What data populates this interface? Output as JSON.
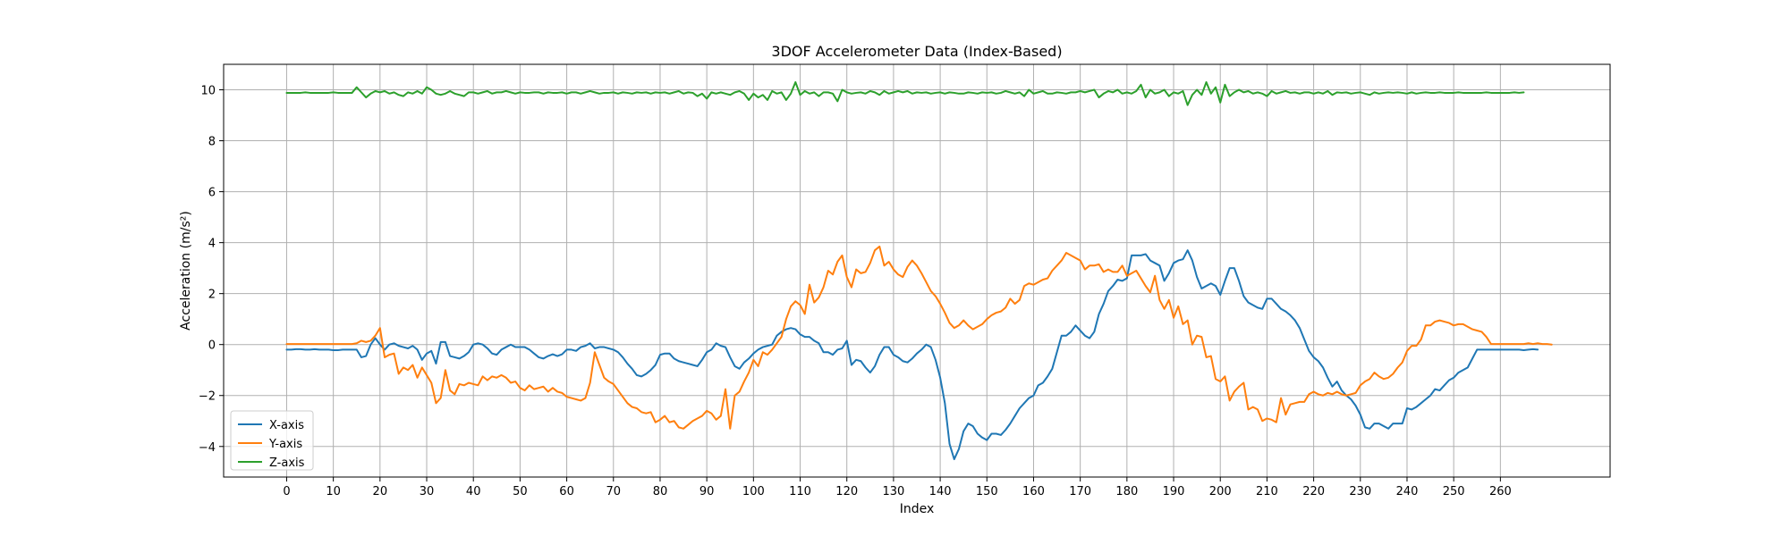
{
  "chart_data": {
    "type": "line",
    "title": "3DOF Accelerometer Data (Index-Based)",
    "xlabel": "Index",
    "ylabel": "Acceleration (m/s²)",
    "xlim": [
      -13.5,
      283.5
    ],
    "ylim": [
      -5.2,
      11.0
    ],
    "xticks": [
      0,
      10,
      20,
      30,
      40,
      50,
      60,
      70,
      80,
      90,
      100,
      110,
      120,
      130,
      140,
      150,
      160,
      170,
      180,
      190,
      200,
      210,
      220,
      230,
      240,
      250,
      260
    ],
    "yticks": [
      -4,
      -2,
      0,
      2,
      4,
      6,
      8,
      10
    ],
    "grid": true,
    "legend_position": "lower-left",
    "x_step": 1,
    "series": [
      {
        "name": "X-axis",
        "color": "#1f77b4",
        "x_start": 0,
        "values": [
          -0.2,
          -0.2,
          -0.18,
          -0.18,
          -0.2,
          -0.2,
          -0.18,
          -0.2,
          -0.2,
          -0.2,
          -0.22,
          -0.22,
          -0.2,
          -0.2,
          -0.2,
          -0.2,
          -0.5,
          -0.45,
          0.0,
          0.25,
          0.0,
          -0.2,
          0.0,
          0.05,
          -0.05,
          -0.1,
          -0.15,
          -0.05,
          -0.2,
          -0.6,
          -0.35,
          -0.25,
          -0.75,
          0.1,
          0.1,
          -0.45,
          -0.5,
          -0.55,
          -0.45,
          -0.3,
          0.0,
          0.05,
          0.0,
          -0.15,
          -0.35,
          -0.4,
          -0.2,
          -0.1,
          0.0,
          -0.1,
          -0.1,
          -0.1,
          -0.2,
          -0.35,
          -0.5,
          -0.55,
          -0.45,
          -0.38,
          -0.45,
          -0.38,
          -0.2,
          -0.2,
          -0.25,
          -0.1,
          -0.05,
          0.05,
          -0.15,
          -0.1,
          -0.1,
          -0.15,
          -0.2,
          -0.3,
          -0.5,
          -0.75,
          -0.95,
          -1.2,
          -1.25,
          -1.15,
          -1.0,
          -0.8,
          -0.4,
          -0.35,
          -0.35,
          -0.55,
          -0.65,
          -0.7,
          -0.75,
          -0.8,
          -0.85,
          -0.6,
          -0.3,
          -0.2,
          0.05,
          -0.05,
          -0.1,
          -0.5,
          -0.85,
          -0.95,
          -0.7,
          -0.55,
          -0.35,
          -0.2,
          -0.1,
          -0.05,
          0.0,
          0.35,
          0.5,
          0.6,
          0.65,
          0.6,
          0.4,
          0.3,
          0.3,
          0.15,
          0.05,
          -0.3,
          -0.3,
          -0.4,
          -0.2,
          -0.15,
          0.15,
          -0.8,
          -0.6,
          -0.65,
          -0.9,
          -1.1,
          -0.85,
          -0.4,
          -0.1,
          -0.1,
          -0.4,
          -0.5,
          -0.65,
          -0.7,
          -0.55,
          -0.35,
          -0.2,
          0.0,
          -0.1,
          -0.6,
          -1.3,
          -2.3,
          -3.9,
          -4.5,
          -4.1,
          -3.4,
          -3.1,
          -3.2,
          -3.5,
          -3.65,
          -3.75,
          -3.5,
          -3.5,
          -3.55,
          -3.35,
          -3.1,
          -2.8,
          -2.5,
          -2.3,
          -2.1,
          -2.0,
          -1.6,
          -1.5,
          -1.25,
          -0.95,
          -0.3,
          0.35,
          0.35,
          0.5,
          0.75,
          0.55,
          0.35,
          0.25,
          0.5,
          1.2,
          1.6,
          2.1,
          2.3,
          2.55,
          2.5,
          2.6,
          3.5,
          3.5,
          3.5,
          3.55,
          3.3,
          3.2,
          3.1,
          2.5,
          2.8,
          3.2,
          3.3,
          3.35,
          3.7,
          3.3,
          2.65,
          2.2,
          2.3,
          2.4,
          2.3,
          1.95,
          2.5,
          3.0,
          3.0,
          2.5,
          1.9,
          1.65,
          1.55,
          1.45,
          1.4,
          1.8,
          1.8,
          1.6,
          1.4,
          1.3,
          1.15,
          0.95,
          0.65,
          0.2,
          -0.25,
          -0.5,
          -0.65,
          -0.9,
          -1.3,
          -1.65,
          -1.45,
          -1.8,
          -2.0,
          -2.15,
          -2.4,
          -2.75,
          -3.25,
          -3.3,
          -3.1,
          -3.1,
          -3.2,
          -3.3,
          -3.1,
          -3.1,
          -3.1,
          -2.5,
          -2.55,
          -2.45,
          -2.3,
          -2.15,
          -2.0,
          -1.75,
          -1.8,
          -1.6,
          -1.4,
          -1.3,
          -1.1,
          -1.0,
          -0.9,
          -0.55,
          -0.2,
          -0.2,
          -0.2,
          -0.2,
          -0.2,
          -0.2,
          -0.2,
          -0.2,
          -0.2,
          -0.2,
          -0.22,
          -0.2,
          -0.18,
          -0.2
        ]
      },
      {
        "name": "Y-axis",
        "color": "#ff7f0e",
        "x_start": 0,
        "values": [
          0.02,
          0.02,
          0.02,
          0.02,
          0.02,
          0.02,
          0.02,
          0.02,
          0.02,
          0.02,
          0.02,
          0.02,
          0.02,
          0.02,
          0.02,
          0.05,
          0.15,
          0.1,
          0.15,
          0.35,
          0.65,
          -0.5,
          -0.4,
          -0.35,
          -1.15,
          -0.9,
          -1.0,
          -0.8,
          -1.3,
          -0.9,
          -1.2,
          -1.5,
          -2.3,
          -2.1,
          -1.0,
          -1.8,
          -1.95,
          -1.55,
          -1.6,
          -1.5,
          -1.55,
          -1.6,
          -1.25,
          -1.4,
          -1.25,
          -1.3,
          -1.2,
          -1.3,
          -1.5,
          -1.45,
          -1.7,
          -1.8,
          -1.6,
          -1.75,
          -1.7,
          -1.65,
          -1.85,
          -1.7,
          -1.85,
          -1.9,
          -2.05,
          -2.1,
          -2.15,
          -2.2,
          -2.1,
          -1.5,
          -0.3,
          -0.8,
          -1.3,
          -1.45,
          -1.55,
          -1.8,
          -2.05,
          -2.3,
          -2.45,
          -2.5,
          -2.65,
          -2.7,
          -2.65,
          -3.05,
          -2.95,
          -2.8,
          -3.05,
          -3.0,
          -3.25,
          -3.3,
          -3.15,
          -3.0,
          -2.9,
          -2.8,
          -2.6,
          -2.7,
          -2.95,
          -2.8,
          -1.75,
          -3.3,
          -2.0,
          -1.85,
          -1.45,
          -1.1,
          -0.6,
          -0.85,
          -0.3,
          -0.4,
          -0.2,
          0.05,
          0.3,
          1.0,
          1.5,
          1.7,
          1.55,
          1.2,
          2.35,
          1.65,
          1.85,
          2.25,
          2.9,
          2.75,
          3.25,
          3.5,
          2.65,
          2.25,
          2.95,
          2.8,
          2.85,
          3.2,
          3.7,
          3.85,
          3.1,
          3.25,
          2.95,
          2.75,
          2.65,
          3.05,
          3.3,
          3.1,
          2.8,
          2.45,
          2.1,
          1.9,
          1.6,
          1.25,
          0.85,
          0.65,
          0.75,
          0.95,
          0.75,
          0.6,
          0.7,
          0.8,
          1.0,
          1.15,
          1.25,
          1.3,
          1.45,
          1.8,
          1.6,
          1.75,
          2.3,
          2.4,
          2.35,
          2.45,
          2.55,
          2.6,
          2.9,
          3.1,
          3.3,
          3.6,
          3.5,
          3.4,
          3.3,
          2.95,
          3.1,
          3.1,
          3.15,
          2.85,
          2.95,
          2.85,
          2.85,
          3.1,
          2.7,
          2.8,
          2.9,
          2.6,
          2.3,
          2.05,
          2.7,
          1.75,
          1.4,
          1.75,
          1.05,
          1.5,
          0.8,
          0.95,
          0.0,
          0.35,
          0.3,
          -0.5,
          -0.45,
          -1.35,
          -1.45,
          -1.25,
          -2.2,
          -1.85,
          -1.65,
          -1.5,
          -2.55,
          -2.45,
          -2.55,
          -3.0,
          -2.9,
          -2.95,
          -3.05,
          -2.1,
          -2.75,
          -2.35,
          -2.3,
          -2.25,
          -2.25,
          -1.95,
          -1.85,
          -1.95,
          -2.0,
          -1.9,
          -1.95,
          -1.85,
          -1.95,
          -2.0,
          -1.95,
          -1.9,
          -1.6,
          -1.45,
          -1.35,
          -1.1,
          -1.25,
          -1.35,
          -1.3,
          -1.15,
          -0.9,
          -0.7,
          -0.25,
          -0.05,
          -0.05,
          0.2,
          0.75,
          0.75,
          0.9,
          0.95,
          0.9,
          0.85,
          0.75,
          0.8,
          0.8,
          0.7,
          0.6,
          0.55,
          0.5,
          0.3,
          0.02,
          0.02,
          0.02,
          0.02,
          0.02,
          0.02,
          0.02,
          0.02,
          0.05,
          0.02,
          0.05,
          0.02,
          0.02,
          0.0
        ]
      },
      {
        "name": "Z-axis",
        "color": "#2ca02c",
        "x_start": 0,
        "values": [
          9.88,
          9.88,
          9.88,
          9.88,
          9.9,
          9.88,
          9.88,
          9.88,
          9.88,
          9.88,
          9.9,
          9.88,
          9.88,
          9.88,
          9.88,
          10.1,
          9.9,
          9.7,
          9.85,
          9.95,
          9.9,
          9.95,
          9.85,
          9.9,
          9.8,
          9.75,
          9.9,
          9.85,
          9.95,
          9.85,
          10.1,
          10.0,
          9.85,
          9.8,
          9.85,
          9.95,
          9.85,
          9.8,
          9.75,
          9.9,
          9.9,
          9.85,
          9.9,
          9.95,
          9.85,
          9.9,
          9.9,
          9.95,
          9.9,
          9.85,
          9.9,
          9.88,
          9.88,
          9.9,
          9.9,
          9.85,
          9.9,
          9.88,
          9.88,
          9.9,
          9.85,
          9.9,
          9.9,
          9.85,
          9.9,
          9.95,
          9.9,
          9.85,
          9.88,
          9.88,
          9.9,
          9.85,
          9.9,
          9.88,
          9.85,
          9.9,
          9.88,
          9.9,
          9.85,
          9.9,
          9.88,
          9.9,
          9.85,
          9.9,
          9.95,
          9.85,
          9.9,
          9.88,
          9.75,
          9.85,
          9.65,
          9.9,
          9.85,
          9.9,
          9.85,
          9.8,
          9.9,
          9.95,
          9.85,
          9.6,
          9.85,
          9.7,
          9.8,
          9.6,
          9.95,
          9.85,
          9.9,
          9.6,
          9.85,
          10.3,
          9.8,
          9.95,
          9.85,
          9.9,
          9.75,
          9.9,
          9.9,
          9.85,
          9.55,
          10.0,
          9.9,
          9.85,
          9.88,
          9.9,
          9.85,
          9.95,
          9.9,
          9.8,
          9.95,
          9.85,
          9.9,
          9.95,
          9.9,
          9.95,
          9.85,
          9.9,
          9.88,
          9.9,
          9.85,
          9.88,
          9.9,
          9.85,
          9.9,
          9.88,
          9.85,
          9.85,
          9.9,
          9.88,
          9.85,
          9.9,
          9.88,
          9.9,
          9.85,
          9.88,
          9.95,
          9.9,
          9.85,
          9.9,
          9.75,
          10.0,
          9.85,
          9.9,
          9.95,
          9.85,
          9.85,
          9.9,
          9.88,
          9.85,
          9.9,
          9.9,
          9.95,
          9.9,
          9.95,
          10.0,
          9.7,
          9.85,
          9.95,
          9.9,
          10.0,
          9.85,
          9.9,
          9.85,
          9.95,
          10.2,
          9.7,
          10.0,
          9.85,
          9.9,
          10.0,
          9.75,
          9.9,
          9.85,
          9.95,
          9.4,
          9.8,
          10.0,
          9.8,
          10.3,
          9.85,
          10.1,
          9.5,
          10.2,
          9.75,
          9.9,
          10.0,
          9.9,
          9.95,
          9.85,
          9.9,
          9.85,
          9.75,
          9.95,
          9.85,
          9.9,
          9.95,
          9.88,
          9.9,
          9.85,
          9.9,
          9.9,
          9.85,
          9.9,
          9.85,
          9.95,
          9.8,
          9.9,
          9.88,
          9.9,
          9.85,
          9.88,
          9.9,
          9.85,
          9.8,
          9.9,
          9.85,
          9.88,
          9.9,
          9.88,
          9.9,
          9.88,
          9.85,
          9.9,
          9.85,
          9.88,
          9.9,
          9.88,
          9.88,
          9.9,
          9.88,
          9.88,
          9.88,
          9.9,
          9.88,
          9.88,
          9.88,
          9.88,
          9.88,
          9.9,
          9.88,
          9.88,
          9.88,
          9.88,
          9.88,
          9.9,
          9.88,
          9.9
        ]
      }
    ]
  }
}
